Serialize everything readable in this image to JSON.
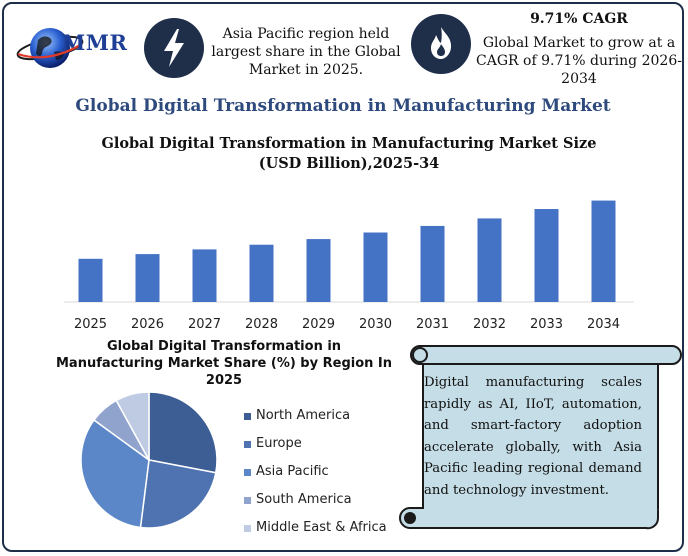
{
  "brand": {
    "logo_text": "MMR"
  },
  "highlights": [
    {
      "icon": "lightning-bolt-icon",
      "text": "Asia Pacific region held largest share in the Global Market in 2025."
    },
    {
      "icon": "flame-icon",
      "title": "9.71% CAGR",
      "text": "Global Market to grow at a CAGR of 9.71% during 2026-2034"
    }
  ],
  "main_title": "Global Digital Transformation in Manufacturing Market",
  "colors": {
    "navy": "#1f2f4a",
    "bar": "#4472c4",
    "title_blue": "#2e4a7d",
    "scroll_fill": "#c5dde6"
  },
  "chart_data": [
    {
      "type": "bar",
      "title": "Global Digital Transformation in Manufacturing Market Size (USD Billion),2025-34",
      "categories": [
        "2025",
        "2026",
        "2027",
        "2028",
        "2029",
        "2030",
        "2031",
        "2032",
        "2033",
        "2034"
      ],
      "values": [
        46,
        51,
        56,
        61,
        67,
        74,
        81,
        89,
        99,
        108
      ],
      "ylim": [
        0,
        115
      ],
      "grid": false,
      "color": "#4472c4"
    },
    {
      "type": "pie",
      "title": "Global Digital Transformation in Manufacturing Market Share (%) by Region In 2025",
      "labels": [
        "North America",
        "Europe",
        "Asia Pacific",
        "South America",
        "Middle East & Africa"
      ],
      "values": [
        28,
        24,
        33,
        7,
        8
      ],
      "colors": [
        "#3c5e94",
        "#4e73b0",
        "#5b86c8",
        "#8fa3cd",
        "#bfcbe3"
      ],
      "legend": "right"
    }
  ],
  "callout": {
    "text": "Digital manufacturing scales rapidly as AI, IIoT, automation, and smart-factory adoption accelerate globally, with Asia Pacific leading regional demand and technology investment."
  }
}
